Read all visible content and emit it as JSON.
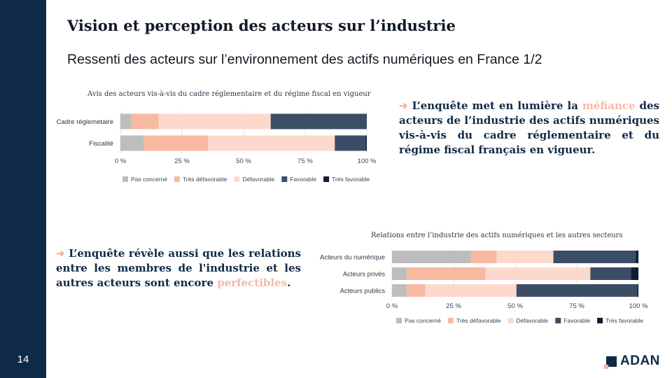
{
  "slide": {
    "title": "Vision et perception des acteurs sur l’industrie",
    "subtitle": "Ressenti des acteurs sur l’environnement des actifs numériques en France 1/2",
    "page_number": "14"
  },
  "callout_1": {
    "arrow": "➜",
    "text_before": " L’enquête met en lumière la ",
    "highlight": "méfiance",
    "text_after": " des acteurs de l’industrie des actifs numériques vis-à-vis du cadre réglementaire et du régime fiscal français en vigueur."
  },
  "callout_2": {
    "arrow": "➜",
    "text_before": " L’enquête révèle aussi que les relations entre les membres de l'industrie et les autres acteurs sont encore ",
    "highlight": "perfectibles",
    "text_after": "."
  },
  "logo": {
    "text": "ADAN"
  },
  "colors": {
    "pas_concerne": "#bdbdbd",
    "tres_defavorable": "#f8b9a1",
    "defavorable": "#fdd9cd",
    "favorable": "#3b4e66",
    "tres_favorable": "#0f1e33"
  },
  "chart_data": [
    {
      "type": "bar",
      "orientation": "horizontal",
      "stacked": true,
      "title": "Avis des acteurs vis-à-vis du cadre réglementaire et du régime fiscal en vigueur",
      "categories": [
        "Cadre réglemetaire",
        "Fiscalité"
      ],
      "series": [
        {
          "name": "Pas concerné",
          "values": [
            4.5,
            9.5
          ]
        },
        {
          "name": "Très défavorable",
          "values": [
            11,
            26
          ]
        },
        {
          "name": "Défavorable",
          "values": [
            45.5,
            51.5
          ]
        },
        {
          "name": "Favorable",
          "values": [
            39,
            12.5
          ]
        },
        {
          "name": "Très favorable",
          "values": [
            0,
            0.5
          ]
        }
      ],
      "x_ticks": [
        "0 %",
        "25 %",
        "50 %",
        "75 %",
        "100 %"
      ],
      "xlim": [
        0,
        100
      ],
      "legend_position": "bottom"
    },
    {
      "type": "bar",
      "orientation": "horizontal",
      "stacked": true,
      "title": "Relations entre l’industrie des actifs numériques et les autres secteurs",
      "categories": [
        "Acteurs du numérique",
        "Acteurs privés",
        "Acteurs publics"
      ],
      "series": [
        {
          "name": "Pas concerné",
          "values": [
            32,
            6,
            6
          ]
        },
        {
          "name": "Très défavorable",
          "values": [
            10.5,
            32,
            7.5
          ]
        },
        {
          "name": "Défavorable",
          "values": [
            23,
            42.5,
            37
          ]
        },
        {
          "name": "Favorable",
          "values": [
            33.5,
            16.5,
            49
          ]
        },
        {
          "name": "Très favorable",
          "values": [
            1,
            3,
            0.5
          ]
        }
      ],
      "x_ticks": [
        "0 %",
        "25 %",
        "50 %",
        "75 %",
        "100 %"
      ],
      "xlim": [
        0,
        100
      ],
      "legend_position": "bottom"
    }
  ]
}
